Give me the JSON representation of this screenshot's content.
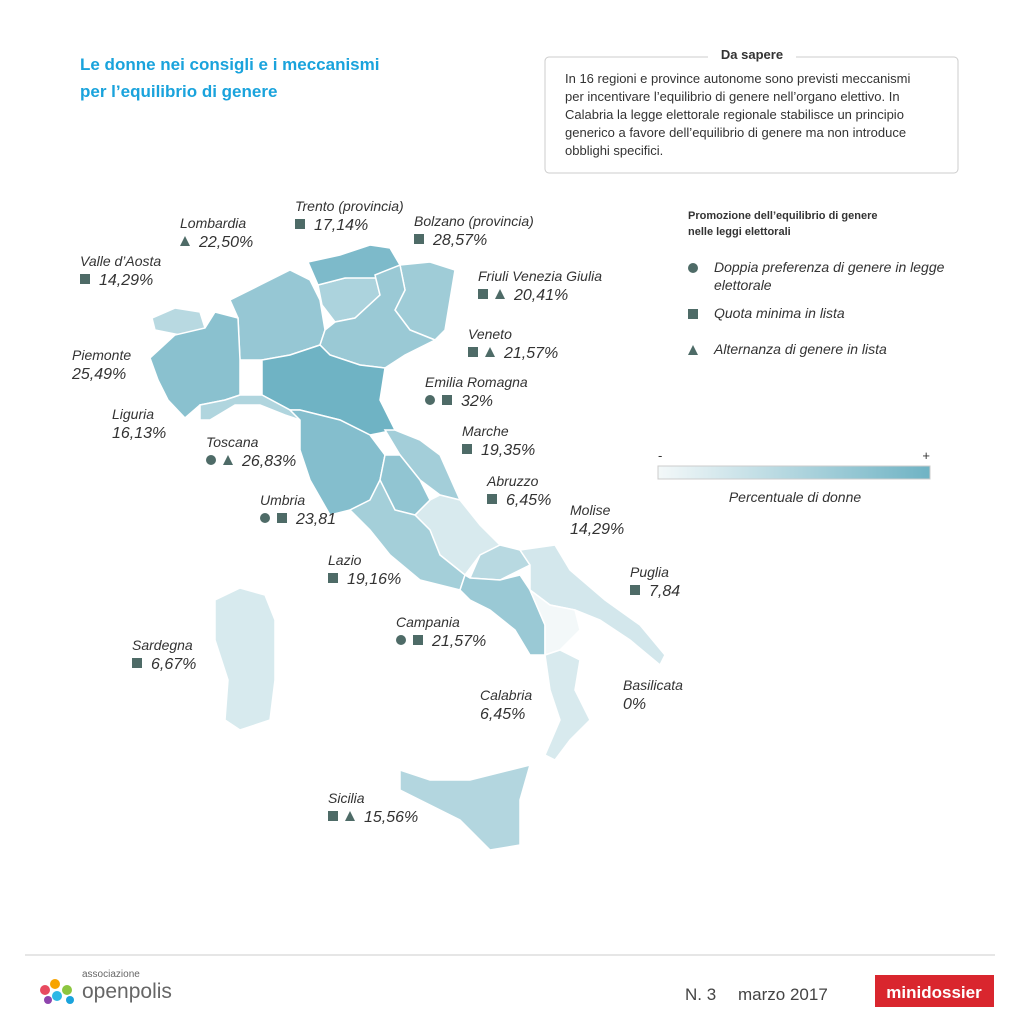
{
  "header": {
    "title_lines": [
      "Le donne nei consigli e i meccanismi",
      "per l’equilibrio di genere"
    ]
  },
  "box": {
    "title": "Da sapere",
    "lines": [
      "In 16 regioni e province autonome sono previsti meccanismi",
      "per incentivare l’equilibrio di genere nell’organo elettivo. In",
      "Calabria la legge elettorale regionale stabilisce un principio",
      "generico a favore dell’equilibrio di genere ma non introduce",
      "obblighi specifici."
    ]
  },
  "legend": {
    "title_lines": [
      "Promozione dell’equilibrio di genere",
      "nelle leggi elettorali"
    ],
    "items": [
      [
        "Doppia preferenza di genere in legge",
        "elettorale"
      ],
      [
        "Quota minima in lista"
      ],
      [
        "Alternanza di genere in lista"
      ]
    ]
  },
  "scale": {
    "min": "-",
    "max": "+",
    "caption": "Percentuale di donne"
  },
  "regions": [
    {
      "name": "Valle d’Aosta",
      "value": 14.29,
      "label": "14,29%",
      "mechanisms": [
        1
      ]
    },
    {
      "name": "Lombardia",
      "value": 22.5,
      "label": "22,50%",
      "mechanisms": [
        2
      ]
    },
    {
      "name": "Trento (provincia)",
      "value": 17.14,
      "label": "17,14%",
      "mechanisms": [
        1
      ]
    },
    {
      "name": "Bolzano (provincia)",
      "value": 28.57,
      "label": "28,57%",
      "mechanisms": [
        1
      ]
    },
    {
      "name": "Friuli Venezia Giulia",
      "value": 20.41,
      "label": "20,41%",
      "mechanisms": [
        1,
        2
      ]
    },
    {
      "name": "Veneto",
      "value": 21.57,
      "label": "21,57%",
      "mechanisms": [
        1,
        2
      ]
    },
    {
      "name": "Piemonte",
      "value": 25.49,
      "label": "25,49%",
      "mechanisms": []
    },
    {
      "name": "Emilia Romagna",
      "value": 32,
      "label": "32%",
      "mechanisms": [
        0,
        1
      ]
    },
    {
      "name": "Liguria",
      "value": 16.13,
      "label": "16,13%",
      "mechanisms": []
    },
    {
      "name": "Toscana",
      "value": 26.83,
      "label": "26,83%",
      "mechanisms": [
        0,
        2
      ]
    },
    {
      "name": "Marche",
      "value": 19.35,
      "label": "19,35%",
      "mechanisms": [
        1
      ]
    },
    {
      "name": "Abruzzo",
      "value": 6.45,
      "label": "6,45%",
      "mechanisms": [
        1
      ]
    },
    {
      "name": "Umbria",
      "value": 23.81,
      "label": "23,81",
      "mechanisms": [
        0,
        1
      ]
    },
    {
      "name": "Molise",
      "value": 14.29,
      "label": "14,29%",
      "mechanisms": []
    },
    {
      "name": "Lazio",
      "value": 19.16,
      "label": "19,16%",
      "mechanisms": [
        1
      ]
    },
    {
      "name": "Puglia",
      "value": 7.84,
      "label": "7,84",
      "mechanisms": [
        1
      ]
    },
    {
      "name": "Campania",
      "value": 21.57,
      "label": "21,57%",
      "mechanisms": [
        0,
        1
      ]
    },
    {
      "name": "Sardegna",
      "value": 6.67,
      "label": "6,67%",
      "mechanisms": [
        1
      ]
    },
    {
      "name": "Basilicata",
      "value": 0,
      "label": "0%",
      "mechanisms": []
    },
    {
      "name": "Calabria",
      "value": 6.45,
      "label": "6,45%",
      "mechanisms": []
    },
    {
      "name": "Sicilia",
      "value": 15.56,
      "label": "15,56%",
      "mechanisms": [
        1,
        2
      ]
    }
  ],
  "footer": {
    "brand_small": "associazione",
    "brand": "openpolis",
    "issue": "N. 3",
    "date": "marzo 2017",
    "badge": "minidossier"
  }
}
